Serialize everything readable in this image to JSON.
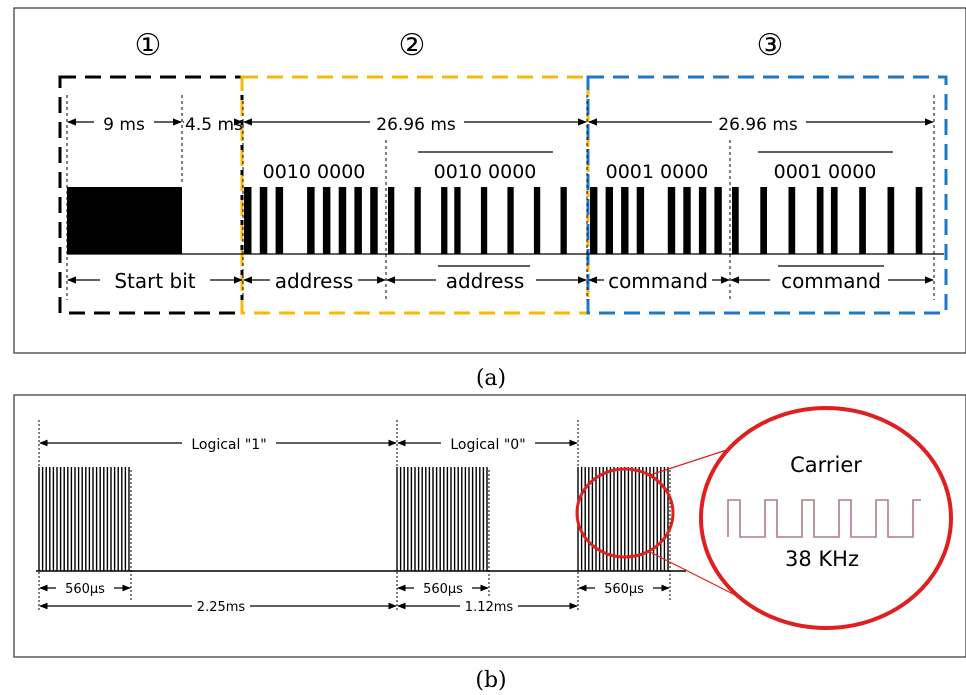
{
  "panel_a": {
    "caption": "(a)",
    "sections": [
      {
        "marker": "①",
        "color": "#000000"
      },
      {
        "marker": "②",
        "color": "#f5b90b"
      },
      {
        "marker": "③",
        "color": "#1f77c4"
      }
    ],
    "durations": {
      "leader_high": "9 ms",
      "leader_low": "4.5 ms",
      "address_frame": "26.96 ms",
      "command_frame": "26.96 ms"
    },
    "bits": {
      "address": "0010 0000",
      "address_inverse": "0010 0000",
      "command": "0001 0000",
      "command_inverse": "0001 0000"
    },
    "fields": {
      "start": "Start bit",
      "address": "address",
      "address_inverse": "address",
      "command": "command",
      "command_inverse": "command"
    }
  },
  "panel_b": {
    "caption": "(b)",
    "logical_one": "Logical \"1\"",
    "logical_zero": "Logical \"0\"",
    "burst_1": "560µs",
    "burst_2": "560µs",
    "burst_3": "560µs",
    "period_one": "2.25ms",
    "period_zero": "1.12ms",
    "carrier_label": "Carrier",
    "carrier_freq": "38 KHz",
    "highlight_color": "#e02020"
  }
}
